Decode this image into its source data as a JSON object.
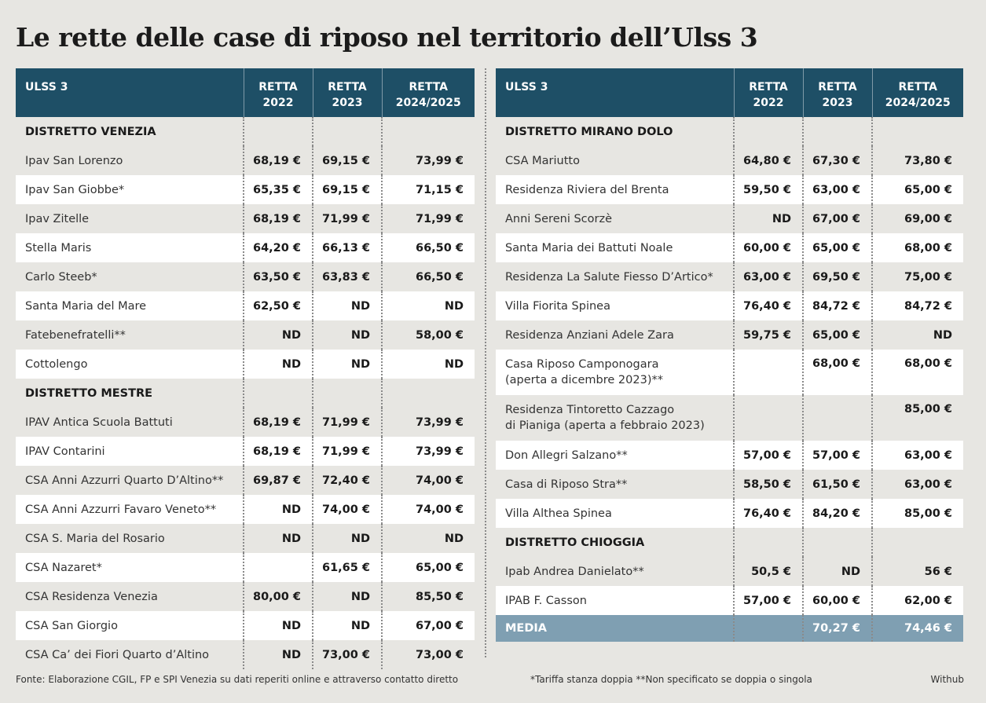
{
  "title": "Le rette delle case di riposo nel territorio dell’Ulss 3",
  "headers": {
    "name": "ULSS 3",
    "y2022": [
      "RETTA",
      "2022"
    ],
    "y2023": [
      "RETTA",
      "2023"
    ],
    "y2024": [
      "RETTA",
      "2024/2025"
    ]
  },
  "left": [
    {
      "kind": "district",
      "name": "DISTRETTO VENEZIA",
      "v": [
        "",
        "",
        ""
      ]
    },
    {
      "kind": "row",
      "name": "Ipav San Lorenzo",
      "v": [
        "68,19 €",
        "69,15 €",
        "73,99 €"
      ]
    },
    {
      "kind": "row",
      "name": "Ipav San Giobbe*",
      "v": [
        "65,35 €",
        "69,15 €",
        "71,15 €"
      ]
    },
    {
      "kind": "row",
      "name": "Ipav Zitelle",
      "v": [
        "68,19 €",
        "71,99 €",
        "71,99 €"
      ]
    },
    {
      "kind": "row",
      "name": "Stella Maris",
      "v": [
        "64,20 €",
        "66,13 €",
        "66,50 €"
      ]
    },
    {
      "kind": "row",
      "name": "Carlo Steeb*",
      "v": [
        "63,50 €",
        "63,83 €",
        "66,50 €"
      ]
    },
    {
      "kind": "row",
      "name": "Santa Maria del Mare",
      "v": [
        "62,50 €",
        "ND",
        "ND"
      ]
    },
    {
      "kind": "row",
      "name": "Fatebenefratelli**",
      "v": [
        "ND",
        "ND",
        "58,00 €"
      ]
    },
    {
      "kind": "row",
      "name": "Cottolengo",
      "v": [
        "ND",
        "ND",
        "ND"
      ]
    },
    {
      "kind": "district",
      "name": "DISTRETTO MESTRE",
      "v": [
        "",
        "",
        ""
      ]
    },
    {
      "kind": "row",
      "name": "IPAV Antica Scuola Battuti",
      "v": [
        "68,19 €",
        "71,99 €",
        "73,99 €"
      ]
    },
    {
      "kind": "row",
      "name": "IPAV Contarini",
      "v": [
        "68,19 €",
        "71,99 €",
        "73,99 €"
      ]
    },
    {
      "kind": "row",
      "name": "CSA Anni Azzurri Quarto D’Altino**",
      "v": [
        "69,87 €",
        "72,40 €",
        "74,00 €"
      ]
    },
    {
      "kind": "row",
      "name": "CSA Anni Azzurri Favaro Veneto**",
      "v": [
        "ND",
        "74,00 €",
        "74,00 €"
      ]
    },
    {
      "kind": "row",
      "name": "CSA S. Maria del Rosario",
      "v": [
        "ND",
        "ND",
        "ND"
      ]
    },
    {
      "kind": "row",
      "name": "CSA Nazaret*",
      "v": [
        "",
        "61,65 €",
        "65,00 €"
      ]
    },
    {
      "kind": "row",
      "name": "CSA Residenza Venezia",
      "v": [
        "80,00 €",
        "ND",
        "85,50 €"
      ]
    },
    {
      "kind": "row",
      "name": "CSA San Giorgio",
      "v": [
        "ND",
        "ND",
        "67,00 €"
      ]
    },
    {
      "kind": "row",
      "name": "CSA Ca’ dei Fiori Quarto d’Altino",
      "v": [
        "ND",
        "73,00 €",
        "73,00 €"
      ]
    }
  ],
  "right": [
    {
      "kind": "district",
      "name": "DISTRETTO MIRANO DOLO",
      "v": [
        "",
        "",
        ""
      ]
    },
    {
      "kind": "row",
      "name": "CSA Mariutto",
      "v": [
        "64,80 €",
        "67,30 €",
        "73,80 €"
      ]
    },
    {
      "kind": "row",
      "name": "Residenza Riviera del Brenta",
      "v": [
        "59,50 €",
        "63,00 €",
        "65,00 €"
      ]
    },
    {
      "kind": "row",
      "name": "Anni Sereni Scorzè",
      "v": [
        "ND",
        "67,00 €",
        "69,00 €"
      ]
    },
    {
      "kind": "row",
      "name": "Santa Maria dei Battuti Noale",
      "v": [
        "60,00 €",
        "65,00 €",
        "68,00 €"
      ]
    },
    {
      "kind": "row",
      "name": "Residenza La Salute Fiesso D’Artico*",
      "v": [
        "63,00 €",
        "69,50 €",
        "75,00 €"
      ]
    },
    {
      "kind": "row",
      "name": "Villa Fiorita Spinea",
      "v": [
        "76,40 €",
        "84,72 €",
        "84,72 €"
      ]
    },
    {
      "kind": "row",
      "name": "Residenza Anziani Adele Zara",
      "v": [
        "59,75 €",
        "65,00 €",
        "ND"
      ]
    },
    {
      "kind": "tall",
      "name": "Casa Riposo Camponogara",
      "name2": "(aperta a dicembre 2023)**",
      "v": [
        "",
        "68,00 €",
        "68,00 €"
      ]
    },
    {
      "kind": "tall",
      "name": "Residenza Tintoretto Cazzago",
      "name2": "di Pianiga (aperta a febbraio 2023)",
      "v": [
        "",
        "",
        "85,00 €"
      ]
    },
    {
      "kind": "row",
      "name": "Don Allegri Salzano**",
      "v": [
        "57,00 €",
        "57,00 €",
        "63,00 €"
      ]
    },
    {
      "kind": "row",
      "name": "Casa di Riposo Stra**",
      "v": [
        "58,50 €",
        "61,50 €",
        "63,00 €"
      ]
    },
    {
      "kind": "row",
      "name": "Villa Althea Spinea",
      "v": [
        "76,40 €",
        "84,20 €",
        "85,00 €"
      ]
    },
    {
      "kind": "district",
      "name": "DISTRETTO CHIOGGIA",
      "v": [
        "",
        "",
        ""
      ]
    },
    {
      "kind": "row",
      "name": "Ipab Andrea Danielato**",
      "v": [
        "50,5 €",
        "ND",
        "56 €"
      ]
    },
    {
      "kind": "row",
      "name": "IPAB F. Casson",
      "v": [
        "57,00 €",
        "60,00 €",
        "62,00 €"
      ]
    },
    {
      "kind": "media",
      "name": "MEDIA",
      "v": [
        "",
        "70,27 €",
        "74,46 €"
      ]
    }
  ],
  "footer": {
    "source": "Fonte: Elaborazione CGIL, FP e SPI Venezia su dati reperiti online e attraverso contatto diretto",
    "notes": "*Tariffa stanza doppia **Non specificato se doppia o singola",
    "credit": "Withub"
  }
}
